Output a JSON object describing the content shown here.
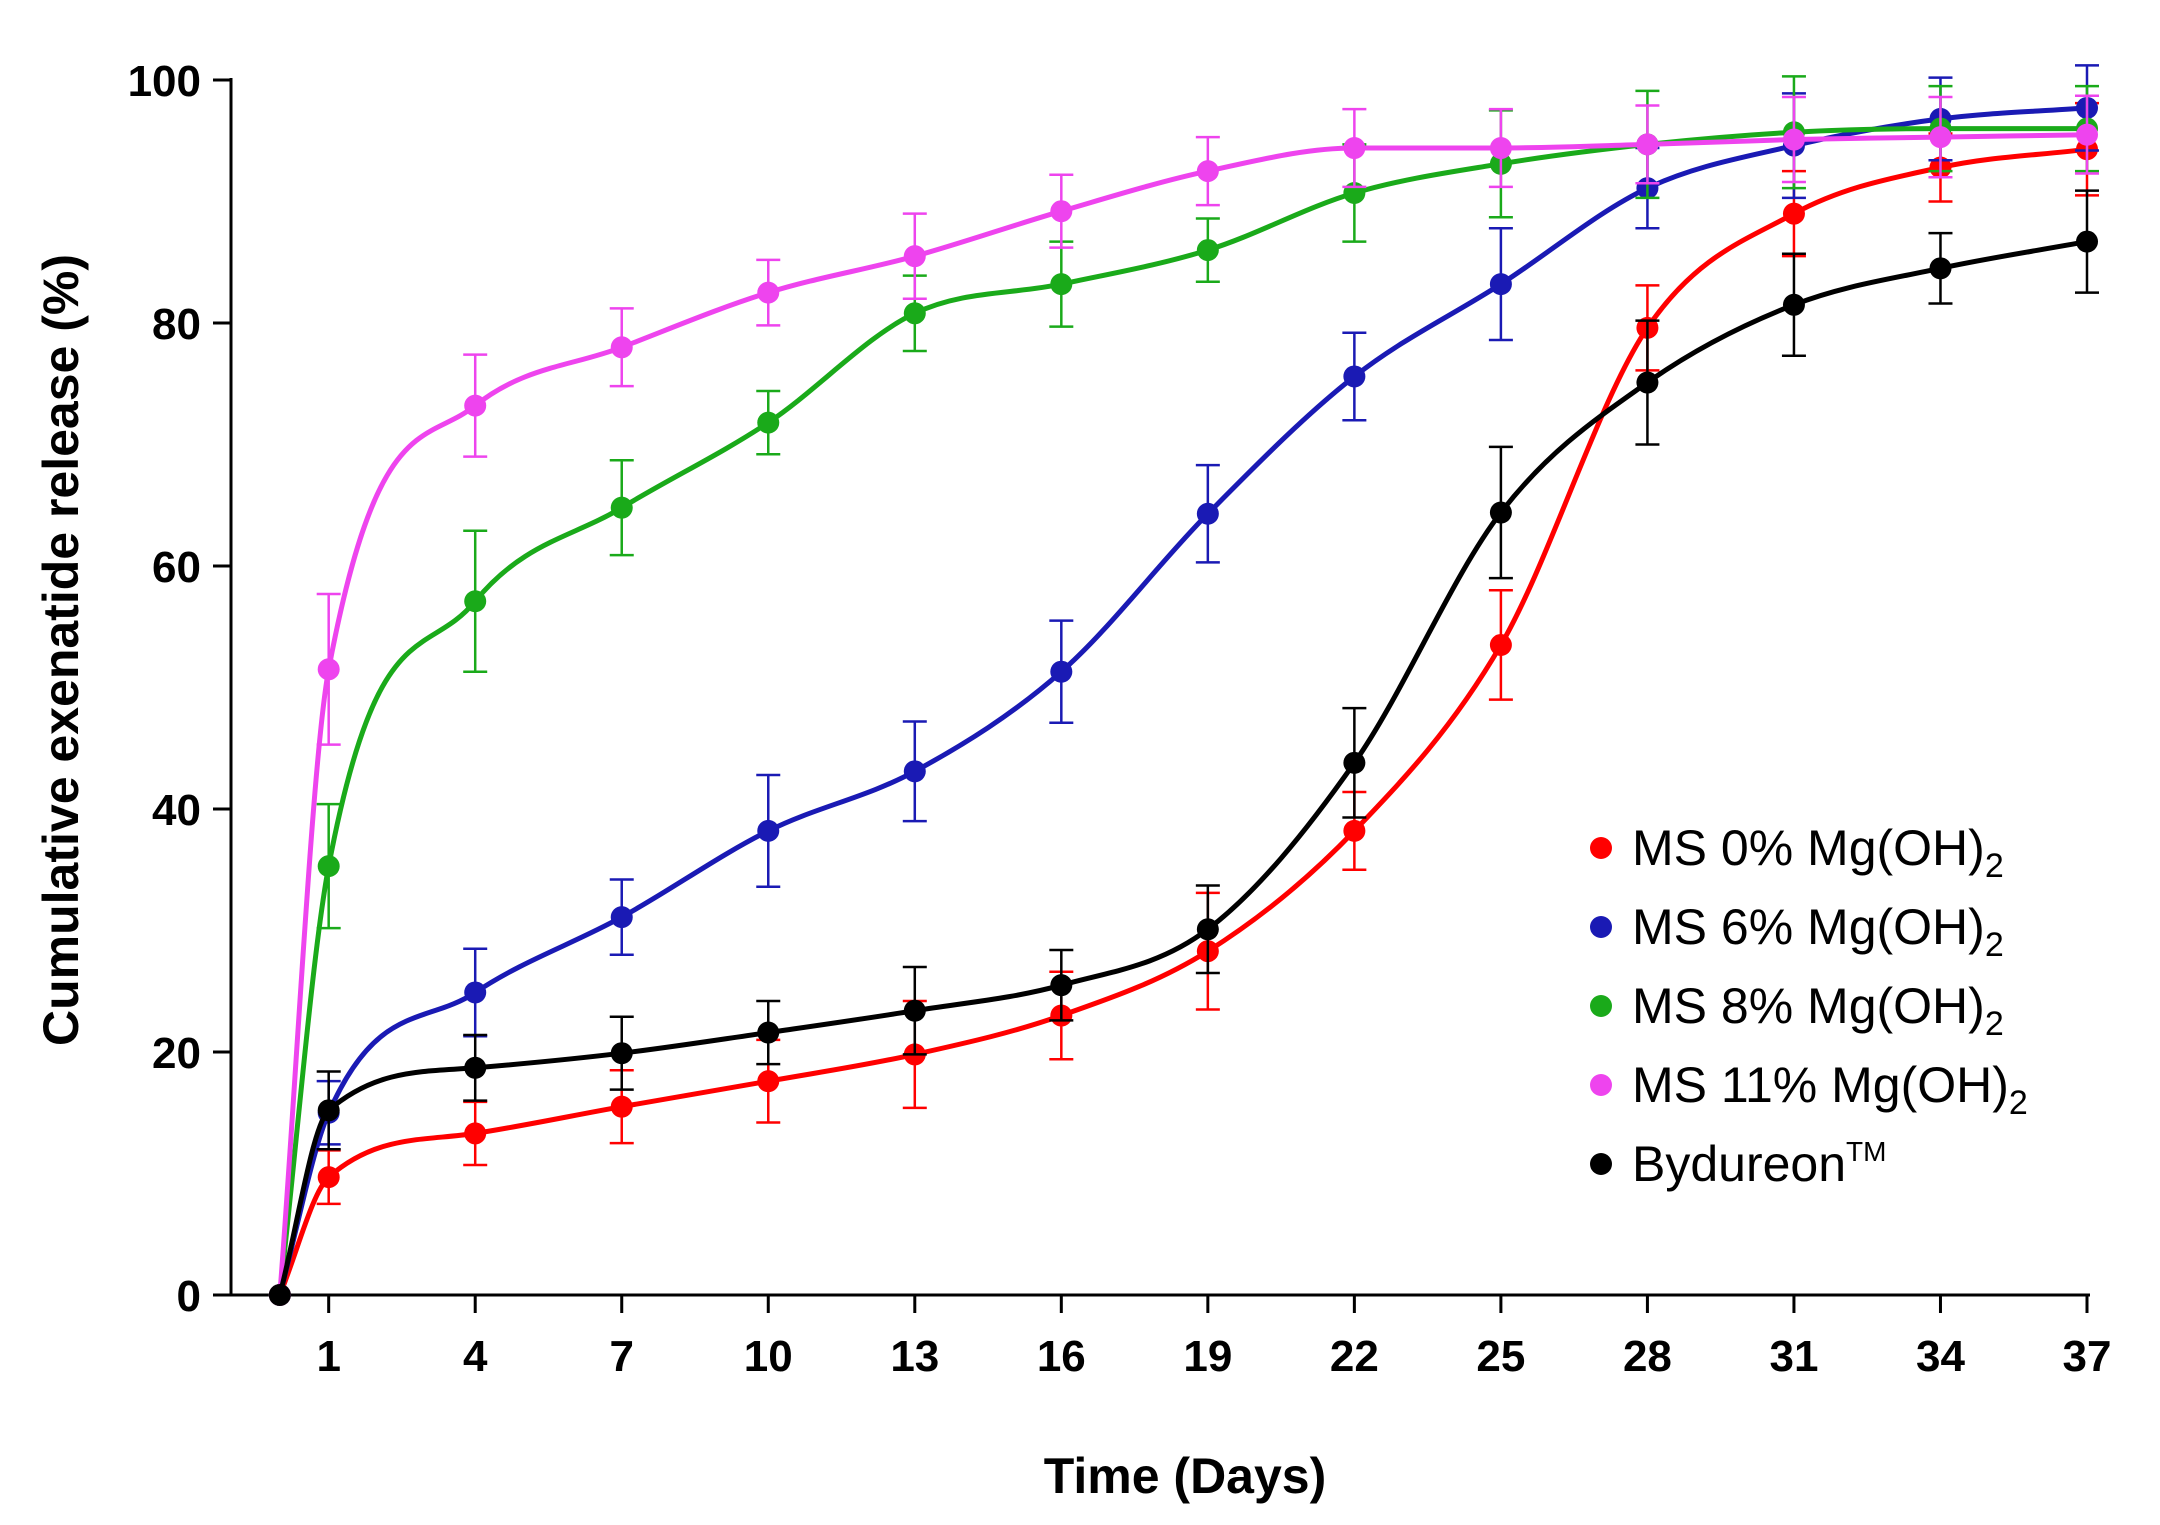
{
  "chart_data": {
    "type": "line",
    "title": "",
    "xlabel": "Time (Days)",
    "ylabel": "Cumulative exenatide release (%)",
    "xlim": [
      -1,
      37
    ],
    "ylim": [
      0,
      100
    ],
    "xticks": [
      1,
      4,
      7,
      10,
      13,
      16,
      19,
      22,
      25,
      28,
      31,
      34,
      37
    ],
    "yticks": [
      0,
      20,
      40,
      60,
      80,
      100
    ],
    "legend_position": "lower-right",
    "x": [
      0,
      1,
      4,
      7,
      10,
      13,
      16,
      19,
      22,
      25,
      28,
      31,
      34,
      37
    ],
    "series": [
      {
        "name": "MS 0% Mg(OH)",
        "name_sub": "2",
        "name_sup": "",
        "color": "#ff0000",
        "values": [
          0,
          9.7,
          13.3,
          15.5,
          17.6,
          19.8,
          23.0,
          28.3,
          38.2,
          53.5,
          79.6,
          89.0,
          92.8,
          94.3
        ],
        "errors": [
          0,
          2.2,
          2.6,
          3.0,
          3.4,
          4.4,
          3.6,
          4.8,
          3.2,
          4.5,
          3.5,
          3.5,
          2.8,
          3.8
        ]
      },
      {
        "name": "MS 6% Mg(OH)",
        "name_sub": "2",
        "name_sup": "",
        "color": "#1a1ab4",
        "values": [
          0,
          15.0,
          24.9,
          31.1,
          38.2,
          43.1,
          51.3,
          64.3,
          75.6,
          83.2,
          91.1,
          94.6,
          96.8,
          97.7
        ],
        "errors": [
          0,
          2.6,
          3.6,
          3.1,
          4.6,
          4.1,
          4.2,
          4.0,
          3.6,
          4.6,
          3.3,
          4.3,
          3.4,
          3.5
        ]
      },
      {
        "name": "MS 8% Mg(OH)",
        "name_sub": "2",
        "name_sup": "",
        "color": "#1aaa1a",
        "values": [
          0,
          35.3,
          57.1,
          64.8,
          71.8,
          80.8,
          83.2,
          86.0,
          90.7,
          93.1,
          94.7,
          95.7,
          96.0,
          96.0
        ],
        "errors": [
          0,
          5.1,
          5.8,
          3.9,
          2.6,
          3.1,
          3.5,
          2.6,
          4.0,
          4.4,
          4.4,
          4.6,
          3.5,
          3.5
        ]
      },
      {
        "name": "MS 11% Mg(OH)",
        "name_sub": "2",
        "name_sup": "",
        "color": "#ee44ee",
        "values": [
          0,
          51.5,
          73.2,
          78.0,
          82.5,
          85.5,
          89.2,
          92.5,
          94.4,
          94.4,
          94.7,
          95.1,
          95.3,
          95.5
        ],
        "errors": [
          0,
          6.2,
          4.2,
          3.2,
          2.7,
          3.5,
          3.0,
          2.8,
          3.2,
          3.2,
          3.2,
          3.5,
          3.3,
          3.2
        ]
      },
      {
        "name": "Bydureon",
        "name_sub": "",
        "name_sup": "TM",
        "color": "#000000",
        "values": [
          0,
          15.2,
          18.7,
          19.9,
          21.6,
          23.4,
          25.5,
          30.1,
          43.8,
          64.4,
          75.1,
          81.5,
          84.5,
          86.7
        ],
        "errors": [
          0,
          3.2,
          2.7,
          3.0,
          2.6,
          3.6,
          2.9,
          3.6,
          4.5,
          5.4,
          5.1,
          4.2,
          2.9,
          4.2
        ]
      }
    ]
  }
}
